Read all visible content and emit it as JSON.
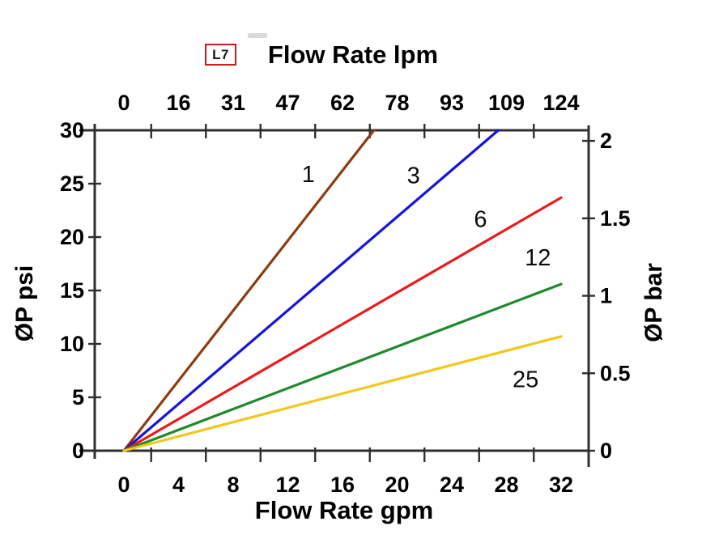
{
  "badge": {
    "label": "L7"
  },
  "titles": {
    "top": "Flow Rate lpm",
    "bottom": "Flow Rate gpm",
    "left": "ØP psi",
    "right": "ØP bar"
  },
  "chart_data": {
    "type": "line",
    "title": "Flow Rate lpm",
    "xlabel": "Flow Rate gpm",
    "ylabel_left": "ØP psi",
    "ylabel_right": "ØP bar",
    "grid": false,
    "legend": "inline-labels",
    "x_axis_bottom": {
      "unit": "gpm",
      "range": [
        0,
        32
      ],
      "tick_labels": [
        "0",
        "4",
        "8",
        "12",
        "16",
        "20",
        "24",
        "28",
        "32"
      ],
      "tick_values": [
        0,
        4,
        8,
        12,
        16,
        20,
        24,
        28,
        32
      ],
      "minor_tick_style": "marks-between-labels"
    },
    "x_axis_top": {
      "unit": "lpm",
      "tick_labels": [
        "0",
        "16",
        "31",
        "47",
        "62",
        "78",
        "93",
        "109",
        "124"
      ],
      "minor_tick_style": "marks-between-labels"
    },
    "y_axis_left": {
      "unit": "psi",
      "range": [
        0,
        30
      ],
      "tick_labels": [
        "0",
        "5",
        "10",
        "15",
        "20",
        "25",
        "30"
      ],
      "tick_values": [
        0,
        5,
        10,
        15,
        20,
        25,
        30
      ]
    },
    "y_axis_right": {
      "unit": "bar",
      "tick_labels": [
        "0",
        "0.5",
        "1",
        "1.5",
        "2"
      ],
      "tick_values": [
        0,
        0.5,
        1,
        1.5,
        2
      ],
      "psi_per_unit": 14.504
    },
    "series": [
      {
        "name": "1",
        "color": "#8e3a11",
        "points": [
          [
            0,
            0
          ],
          [
            18.3,
            30
          ]
        ],
        "label_pos": [
          13.5,
          25.9
        ]
      },
      {
        "name": "3",
        "color": "#1515dc",
        "points": [
          [
            0,
            0
          ],
          [
            27.4,
            30
          ]
        ],
        "label_pos": [
          21.2,
          25.8
        ]
      },
      {
        "name": "6",
        "color": "#e91c1c",
        "points": [
          [
            0,
            0
          ],
          [
            32,
            23.7
          ]
        ],
        "label_pos": [
          26.1,
          21.7
        ]
      },
      {
        "name": "12",
        "color": "#1f8a2d",
        "points": [
          [
            0,
            0
          ],
          [
            32,
            15.6
          ]
        ],
        "label_pos": [
          30.3,
          18.1
        ]
      },
      {
        "name": "25",
        "color": "#f3c71c",
        "points": [
          [
            0,
            0
          ],
          [
            32,
            10.7
          ]
        ],
        "label_pos": [
          29.4,
          6.7
        ]
      }
    ]
  }
}
